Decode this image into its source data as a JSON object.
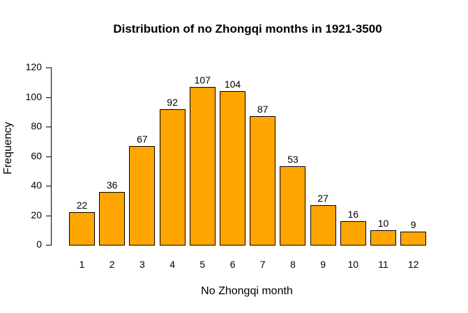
{
  "chart_data": {
    "type": "bar",
    "title": "Distribution of no Zhongqi months in 1921-3500",
    "xlabel": "No Zhongqi month",
    "ylabel": "Frequency",
    "categories": [
      "1",
      "2",
      "3",
      "4",
      "5",
      "6",
      "7",
      "8",
      "9",
      "10",
      "11",
      "12"
    ],
    "values": [
      22,
      36,
      67,
      92,
      107,
      104,
      87,
      53,
      27,
      16,
      10,
      9
    ],
    "yticks": [
      "0",
      "20",
      "40",
      "60",
      "80",
      "100",
      "120"
    ],
    "ylim": [
      0,
      120
    ],
    "grid": false,
    "legend": null,
    "bar_color": "#FFA500",
    "bar_border_color": "#000000"
  }
}
